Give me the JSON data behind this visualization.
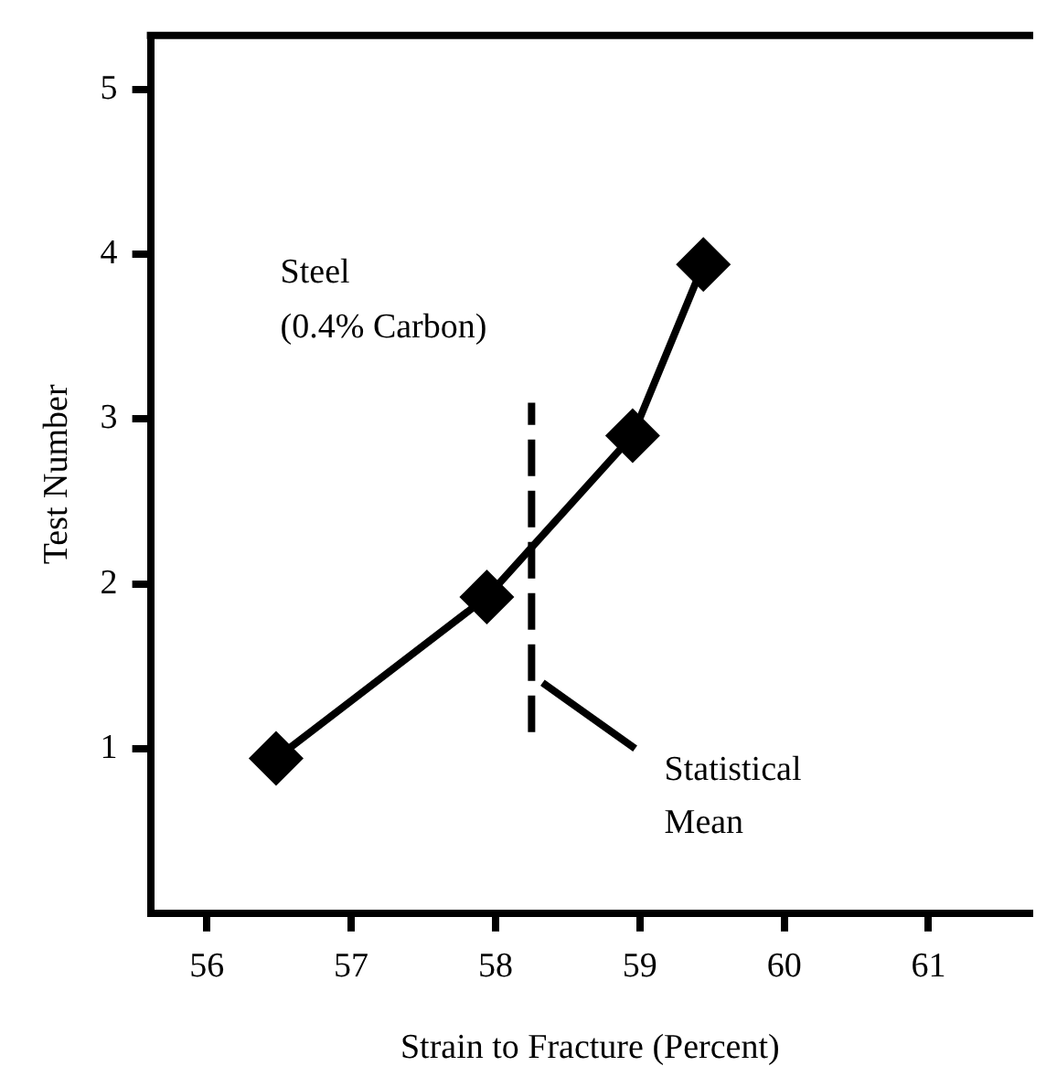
{
  "chart_data": {
    "type": "line",
    "xlabel": "Strain to Fracture (Percent)",
    "ylabel": "Test Number",
    "xlim": [
      55.61,
      61.7
    ],
    "xticks": [
      56,
      57,
      58,
      59,
      60,
      61
    ],
    "ylim": [
      0,
      5.33
    ],
    "yticks": [
      1,
      2,
      3,
      4,
      5
    ],
    "grid": false,
    "legend": false,
    "annotations": [
      "Steel",
      "(0.4% Carbon)",
      "Statistical Mean"
    ],
    "series": [
      {
        "color": "#000000",
        "x": [
          56.48,
          57.94,
          58.95,
          59.44
        ],
        "values": [
          0.94,
          1.92,
          2.9,
          3.94
        ],
        "marker": "diamond",
        "line_style": "solid"
      },
      {
        "type": "line",
        "color": "#000000",
        "x": [
          58.25,
          58.25
        ],
        "values": [
          1.1,
          3.1
        ],
        "marker": "none",
        "line_style": "dashed"
      }
    ]
  }
}
